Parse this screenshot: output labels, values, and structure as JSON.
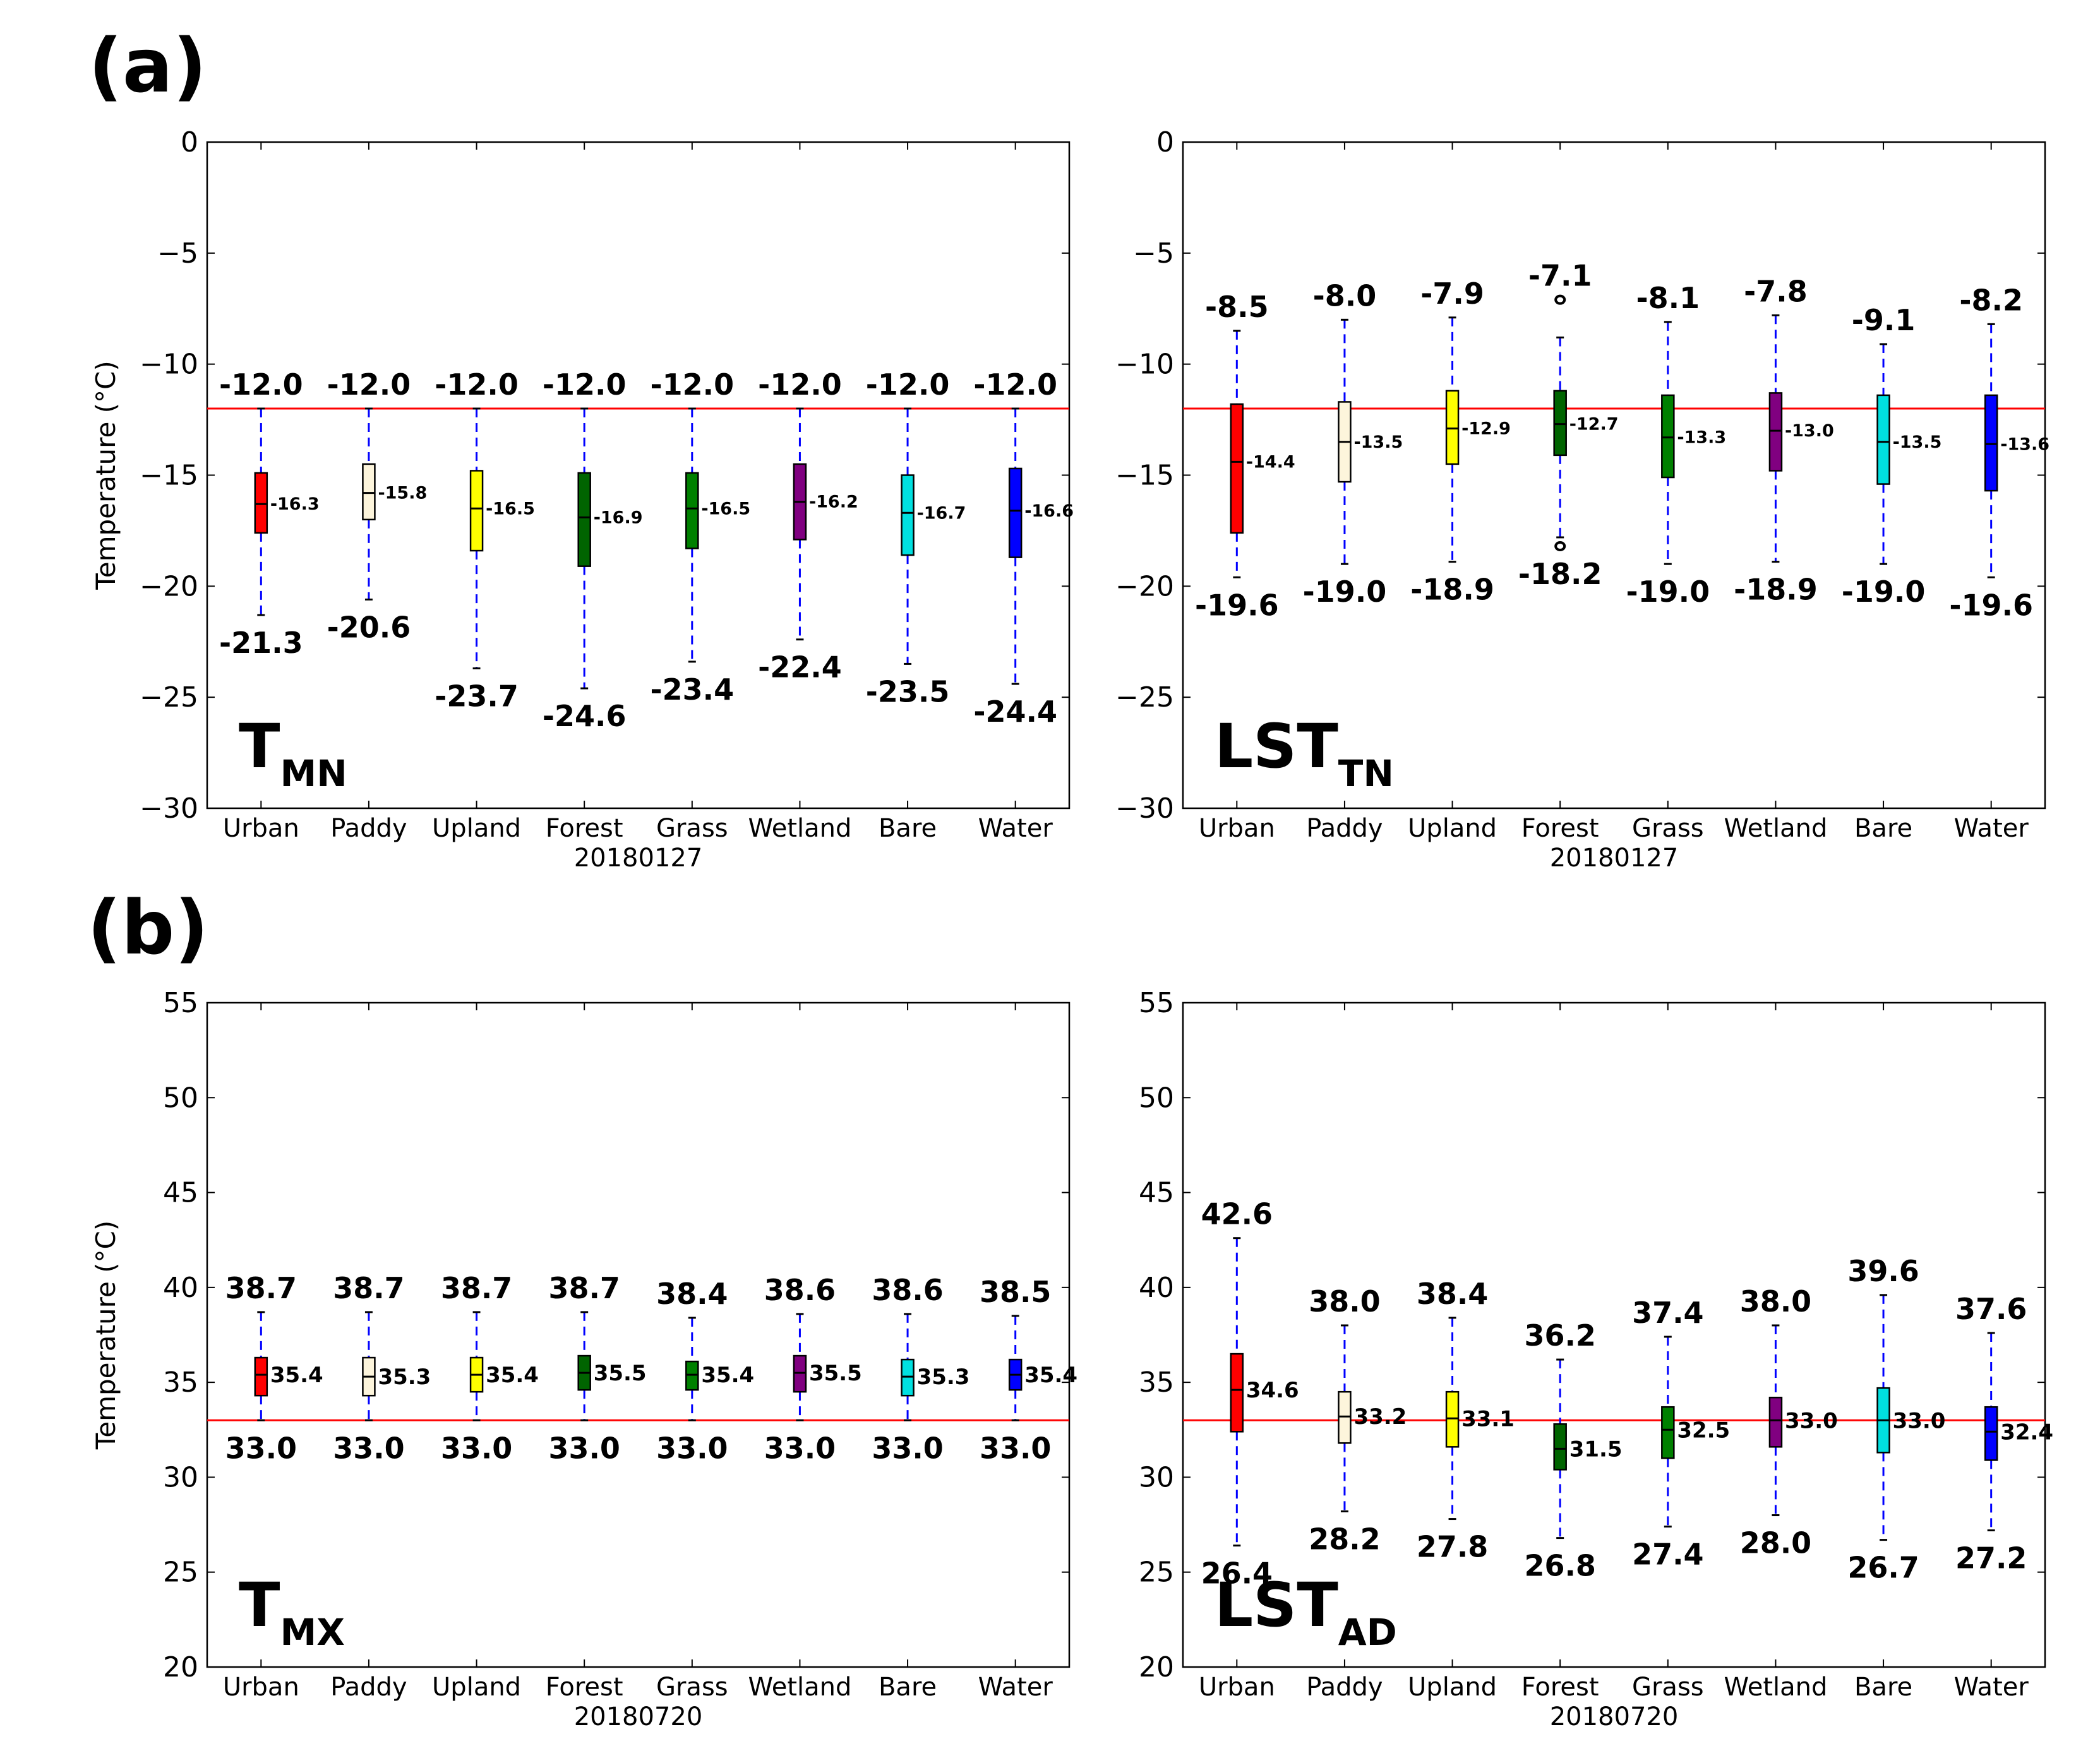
{
  "panel_labels": [
    "(a)",
    "(b)"
  ],
  "colors": {
    "Urban": "#ff0000",
    "Paddy": "#fdf5dc",
    "Upland": "#ffff00",
    "Forest": "#006400",
    "Grass": "#008000",
    "Wetland": "#800080",
    "Bare": "#00e0e0",
    "Water": "#0000ff",
    "whisker": "#0000ff",
    "threshold": "#ff0000"
  },
  "chart_data": [
    {
      "type": "box",
      "id": "tmn",
      "label_main": "T",
      "label_sub": "MN",
      "xlabel": "20180127",
      "ylabel": "Temperature (°C)",
      "ylim": [
        -30,
        0
      ],
      "yticks": [
        0,
        -5,
        -10,
        -15,
        -20,
        -25,
        -30
      ],
      "ytick_labels": [
        "0",
        "−5",
        "−10",
        "−15",
        "−20",
        "−25",
        "−30"
      ],
      "threshold": -12.0,
      "categories": [
        "Urban",
        "Paddy",
        "Upland",
        "Forest",
        "Grass",
        "Wetland",
        "Bare",
        "Water"
      ],
      "max": [
        -12.0,
        -12.0,
        -12.0,
        -12.0,
        -12.0,
        -12.0,
        -12.0,
        -12.0
      ],
      "q3": [
        -14.9,
        -14.5,
        -14.8,
        -14.9,
        -14.9,
        -14.5,
        -15.0,
        -14.7
      ],
      "median": [
        -16.3,
        -15.8,
        -16.5,
        -16.9,
        -16.5,
        -16.2,
        -16.7,
        -16.6
      ],
      "q1": [
        -17.6,
        -17.0,
        -18.4,
        -19.1,
        -18.3,
        -17.9,
        -18.6,
        -18.7
      ],
      "whisker_low": [
        -21.3,
        -20.6,
        -23.7,
        -24.6,
        -23.4,
        -22.4,
        -23.5,
        -24.4
      ],
      "min": [
        -21.3,
        -20.6,
        -23.7,
        -24.6,
        -23.4,
        -22.4,
        -23.5,
        -24.4
      ],
      "max_labels": [
        "-12.0",
        "-12.0",
        "-12.0",
        "-12.0",
        "-12.0",
        "-12.0",
        "-12.0",
        "-12.0"
      ],
      "median_labels": [
        "-16.3",
        "-15.8",
        "-16.5",
        "-16.9",
        "-16.5",
        "-16.2",
        "-16.7",
        "-16.6"
      ],
      "min_labels": [
        "-21.3",
        "-20.6",
        "-23.7",
        "-24.6",
        "-23.4",
        "-22.4",
        "-23.5",
        "-24.4"
      ]
    },
    {
      "type": "box",
      "id": "lsttn",
      "label_main": "LST",
      "label_sub": "TN",
      "xlabel": "20180127",
      "ylabel": "",
      "ylim": [
        -30,
        0
      ],
      "yticks": [
        0,
        -5,
        -10,
        -15,
        -20,
        -25,
        -30
      ],
      "ytick_labels": [
        "0",
        "−5",
        "−10",
        "−15",
        "−20",
        "−25",
        "−30"
      ],
      "threshold": -12.0,
      "categories": [
        "Urban",
        "Paddy",
        "Upland",
        "Forest",
        "Grass",
        "Wetland",
        "Bare",
        "Water"
      ],
      "max": [
        -8.5,
        -8.0,
        -7.9,
        -7.1,
        -8.1,
        -7.8,
        -9.1,
        -8.2
      ],
      "whisker_high": [
        -8.5,
        -8.0,
        -7.9,
        -8.8,
        -8.1,
        -7.8,
        -9.1,
        -8.2
      ],
      "q3": [
        -11.8,
        -11.7,
        -11.2,
        -11.2,
        -11.4,
        -11.3,
        -11.4,
        -11.4
      ],
      "median": [
        -14.4,
        -13.5,
        -12.9,
        -12.7,
        -13.3,
        -13.0,
        -13.5,
        -13.6
      ],
      "q1": [
        -17.6,
        -15.3,
        -14.5,
        -14.1,
        -15.1,
        -14.8,
        -15.4,
        -15.7
      ],
      "whisker_low": [
        -19.6,
        -19.0,
        -18.9,
        -17.8,
        -19.0,
        -18.9,
        -19.0,
        -19.6
      ],
      "min": [
        -19.6,
        -19.0,
        -18.9,
        -18.2,
        -19.0,
        -18.9,
        -19.0,
        -19.6
      ],
      "max_labels": [
        "-8.5",
        "-8.0",
        "-7.9",
        "-7.1",
        "-8.1",
        "-7.8",
        "-9.1",
        "-8.2"
      ],
      "median_labels": [
        "-14.4",
        "-13.5",
        "-12.9",
        "-12.7",
        "-13.3",
        "-13.0",
        "-13.5",
        "-13.6"
      ],
      "min_labels": [
        "-19.6",
        "-19.0",
        "-18.9",
        "-18.2",
        "-19.0",
        "-18.9",
        "-19.0",
        "-19.6"
      ]
    },
    {
      "type": "box",
      "id": "tmx",
      "label_main": "T",
      "label_sub": "MX",
      "xlabel": "20180720",
      "ylabel": "Temperature (°C)",
      "ylim": [
        20,
        55
      ],
      "yticks": [
        55,
        50,
        45,
        40,
        35,
        30,
        25,
        20
      ],
      "ytick_labels": [
        "55",
        "50",
        "45",
        "40",
        "35",
        "30",
        "25",
        "20"
      ],
      "threshold": 33.0,
      "categories": [
        "Urban",
        "Paddy",
        "Upland",
        "Forest",
        "Grass",
        "Wetland",
        "Bare",
        "Water"
      ],
      "max": [
        38.7,
        38.7,
        38.7,
        38.7,
        38.4,
        38.6,
        38.6,
        38.5
      ],
      "q3": [
        36.3,
        36.3,
        36.3,
        36.4,
        36.1,
        36.4,
        36.2,
        36.2
      ],
      "median": [
        35.4,
        35.3,
        35.4,
        35.5,
        35.4,
        35.5,
        35.3,
        35.4
      ],
      "q1": [
        34.3,
        34.3,
        34.5,
        34.6,
        34.6,
        34.5,
        34.3,
        34.6
      ],
      "whisker_low": [
        33.0,
        33.0,
        33.0,
        33.0,
        33.0,
        33.0,
        33.0,
        33.0
      ],
      "min": [
        33.0,
        33.0,
        33.0,
        33.0,
        33.0,
        33.0,
        33.0,
        33.0
      ],
      "max_labels": [
        "38.7",
        "38.7",
        "38.7",
        "38.7",
        "38.4",
        "38.6",
        "38.6",
        "38.5"
      ],
      "median_labels": [
        "35.4",
        "35.3",
        "35.4",
        "35.5",
        "35.4",
        "35.5",
        "35.3",
        "35.4"
      ],
      "min_labels": [
        "33.0",
        "33.0",
        "33.0",
        "33.0",
        "33.0",
        "33.0",
        "33.0",
        "33.0"
      ]
    },
    {
      "type": "box",
      "id": "lstad",
      "label_main": "LST",
      "label_sub": "AD",
      "xlabel": "20180720",
      "ylabel": "",
      "ylim": [
        20,
        55
      ],
      "yticks": [
        55,
        50,
        45,
        40,
        35,
        30,
        25,
        20
      ],
      "ytick_labels": [
        "55",
        "50",
        "45",
        "40",
        "35",
        "30",
        "25",
        "20"
      ],
      "threshold": 33.0,
      "categories": [
        "Urban",
        "Paddy",
        "Upland",
        "Forest",
        "Grass",
        "Wetland",
        "Bare",
        "Water"
      ],
      "max": [
        42.6,
        38.0,
        38.4,
        36.2,
        37.4,
        38.0,
        39.6,
        37.6
      ],
      "whisker_high": [
        42.6,
        38.0,
        38.4,
        36.2,
        37.4,
        38.0,
        39.6,
        37.6
      ],
      "q3": [
        36.5,
        34.5,
        34.5,
        32.8,
        33.7,
        34.2,
        34.7,
        33.7
      ],
      "median": [
        34.6,
        33.2,
        33.1,
        31.5,
        32.5,
        33.0,
        33.0,
        32.4
      ],
      "q1": [
        32.4,
        31.8,
        31.6,
        30.4,
        31.0,
        31.6,
        31.3,
        30.9
      ],
      "whisker_low": [
        26.4,
        28.2,
        27.8,
        26.8,
        27.4,
        28.0,
        26.7,
        27.2
      ],
      "min": [
        26.4,
        28.2,
        27.8,
        26.8,
        27.4,
        28.0,
        26.7,
        27.2
      ],
      "max_labels": [
        "42.6",
        "38.0",
        "38.4",
        "36.2",
        "37.4",
        "38.0",
        "39.6",
        "37.6"
      ],
      "median_labels": [
        "34.6",
        "33.2",
        "33.1",
        "31.5",
        "32.5",
        "33.0",
        "33.0",
        "32.4"
      ],
      "min_labels": [
        "26.4",
        "28.2",
        "27.8",
        "26.8",
        "27.4",
        "28.0",
        "26.7",
        "27.2"
      ]
    }
  ]
}
